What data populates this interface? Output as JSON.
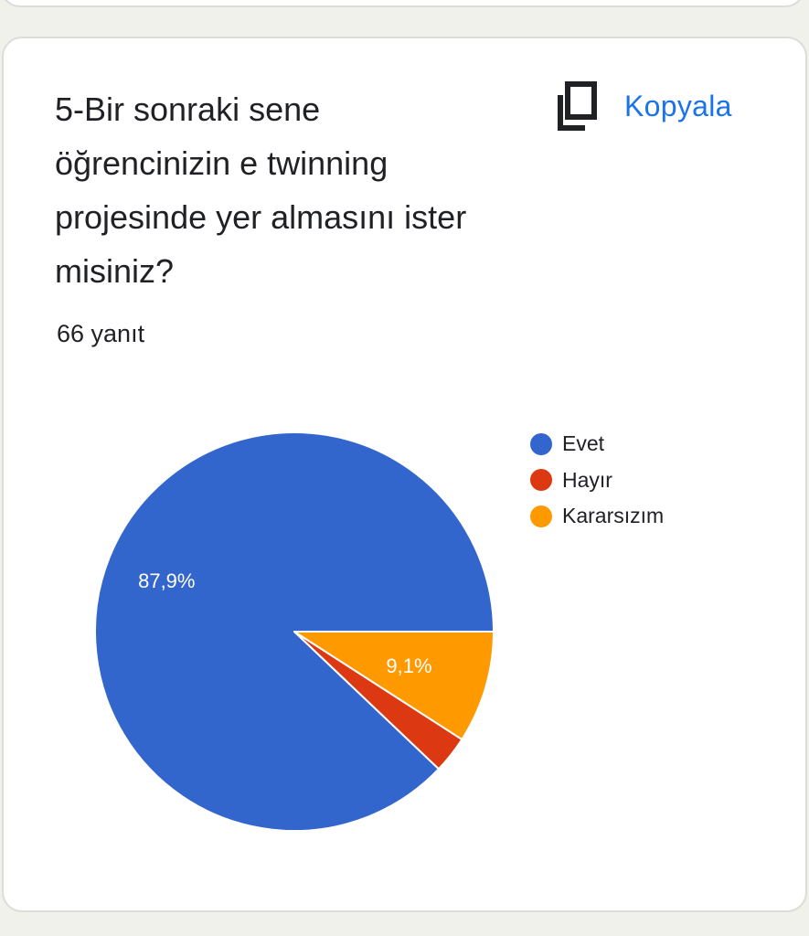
{
  "question": {
    "title": "5-Bir sonraki sene öğrencinizin e twinning projesinde yer almasını ister misiniz?",
    "copy_label": "Kopyala",
    "copy_icon": "copy-icon",
    "response_count": "66 yanıt"
  },
  "chart_data": {
    "type": "pie",
    "categories": [
      "Evet",
      "Hayır",
      "Kararsızım"
    ],
    "values": [
      87.9,
      3.0,
      9.1
    ],
    "counts": [
      58,
      2,
      6
    ],
    "data_labels": [
      "87,9%",
      "",
      "9,1%"
    ],
    "colors": [
      "#3366cc",
      "#dc3912",
      "#ff9900"
    ],
    "legend_position": "right",
    "start_angle": "3 o'clock, counter-clockwise"
  },
  "colors": {
    "accent": "#1a73e8",
    "text": "#202124",
    "card_border": "#dcdcd8",
    "page_background": "#f1f1ec"
  }
}
